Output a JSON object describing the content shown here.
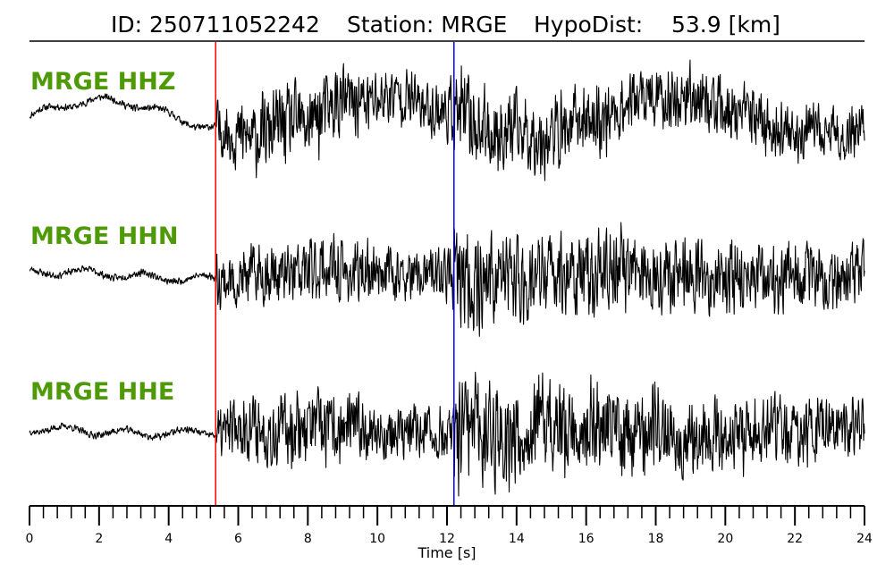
{
  "header": {
    "event_id": "ID: 250711052242",
    "station": "Station: MRGE",
    "hypodist": "HypoDist:    53.9 [km]"
  },
  "colors": {
    "trace": "#000000",
    "label": "#4e9a06",
    "p_pick": "#ff0000",
    "s_pick": "#0000ff"
  },
  "chart_data": {
    "type": "line",
    "xlabel": "Time [s]",
    "xlim": [
      0,
      24
    ],
    "major_ticks": [
      0,
      2,
      4,
      6,
      8,
      10,
      12,
      14,
      16,
      18,
      20,
      22,
      24
    ],
    "minor_tick_step": 0.4,
    "picks": [
      {
        "phase": "P",
        "time": 5.35,
        "color": "#ff0000"
      },
      {
        "phase": "S",
        "time": 12.2,
        "color": "#0000ff"
      }
    ],
    "series": [
      {
        "name": "MRGE HHZ",
        "onset_amplitude": 0.7,
        "s_amplitude": 0.75,
        "coda_amplitude": 0.35,
        "long_period_amplitude": 0.45,
        "seed": 11
      },
      {
        "name": "MRGE HHN",
        "onset_amplitude": 0.6,
        "s_amplitude": 0.9,
        "coda_amplitude": 0.4,
        "long_period_amplitude": 0.1,
        "seed": 23
      },
      {
        "name": "MRGE HHE",
        "onset_amplitude": 0.65,
        "s_amplitude": 1.0,
        "coda_amplitude": 0.4,
        "long_period_amplitude": 0.08,
        "seed": 37
      }
    ]
  }
}
